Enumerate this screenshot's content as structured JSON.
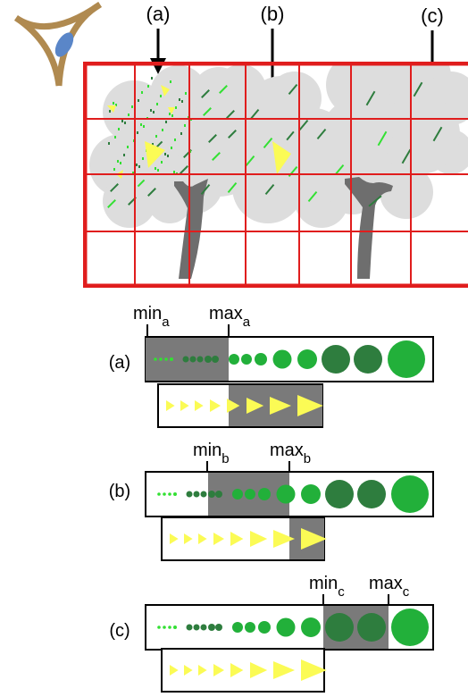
{
  "top_labels": [
    "(a)",
    "(b)",
    "(c)"
  ],
  "rows": [
    {
      "label": "(a)",
      "min_base": "min",
      "min_sub": "a",
      "max_base": "max",
      "max_sub": "a"
    },
    {
      "label": "(b)",
      "min_base": "min",
      "min_sub": "b",
      "max_base": "max",
      "max_sub": "b"
    },
    {
      "label": "(c)",
      "min_base": "min",
      "min_sub": "c",
      "max_base": "max",
      "max_sub": "c"
    }
  ],
  "colors": {
    "grid": "#e01d1d",
    "canopy": "#dddddd",
    "trunk": "#6e6e6e",
    "range": "#7a7a7a",
    "leaf_light": "#33e033",
    "leaf_dark": "#2e7d3e",
    "leaf_mid": "#22b03a",
    "yellow": "#fbfb55",
    "eye_ring": "#b08a50",
    "eye_iris": "#5a86c8"
  }
}
